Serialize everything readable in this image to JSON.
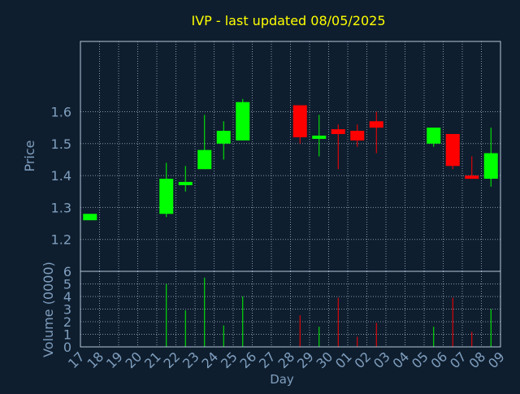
{
  "colors": {
    "background": "#0f1e2e",
    "plot_background": "#0f1e2e",
    "frame": "#b4c8dc",
    "grid": "#a0b4c8",
    "title": "#ffff00",
    "text": "#7f9fbf",
    "up": "#00ff00",
    "down": "#ff0000"
  },
  "chart_data": [
    {
      "type": "candlestick",
      "title": "IVP - last updated 08/05/2025",
      "ylabel": "Price",
      "ylim": [
        1.1,
        1.82
      ],
      "yticks": [
        "1.2",
        "1.3",
        "1.4",
        "1.5",
        "1.6"
      ],
      "grid": true,
      "categories": [
        "17",
        "18",
        "19",
        "20",
        "21",
        "22",
        "23",
        "24",
        "25",
        "26",
        "27",
        "28",
        "29",
        "30",
        "01",
        "02",
        "03",
        "04",
        "05",
        "06",
        "07",
        "08",
        "09"
      ],
      "candles": [
        {
          "day": "17",
          "open": 1.26,
          "high": 1.28,
          "low": 1.26,
          "close": 1.28
        },
        {
          "day": "21",
          "open": 1.28,
          "high": 1.44,
          "low": 1.27,
          "close": 1.39
        },
        {
          "day": "22",
          "open": 1.37,
          "high": 1.43,
          "low": 1.35,
          "close": 1.38
        },
        {
          "day": "23",
          "open": 1.42,
          "high": 1.59,
          "low": 1.42,
          "close": 1.48
        },
        {
          "day": "24",
          "open": 1.5,
          "high": 1.57,
          "low": 1.45,
          "close": 1.54
        },
        {
          "day": "25",
          "open": 1.51,
          "high": 1.64,
          "low": 1.51,
          "close": 1.63
        },
        {
          "day": "28",
          "open": 1.62,
          "high": 1.62,
          "low": 1.5,
          "close": 1.52
        },
        {
          "day": "29",
          "open": 1.52,
          "high": 1.59,
          "low": 1.46,
          "close": 1.525
        },
        {
          "day": "30",
          "open": 1.545,
          "high": 1.56,
          "low": 1.42,
          "close": 1.53
        },
        {
          "day": "01",
          "open": 1.54,
          "high": 1.56,
          "low": 1.49,
          "close": 1.51
        },
        {
          "day": "02",
          "open": 1.57,
          "high": 1.6,
          "low": 1.47,
          "close": 1.55
        },
        {
          "day": "05",
          "open": 1.5,
          "high": 1.55,
          "low": 1.49,
          "close": 1.55
        },
        {
          "day": "06",
          "open": 1.53,
          "high": 1.53,
          "low": 1.42,
          "close": 1.43
        },
        {
          "day": "07",
          "open": 1.4,
          "high": 1.46,
          "low": 1.39,
          "close": 1.39
        },
        {
          "day": "08",
          "open": 1.39,
          "high": 1.55,
          "low": 1.365,
          "close": 1.47
        }
      ]
    },
    {
      "type": "bar",
      "ylabel": "Volume (0000)",
      "xlabel": "Day",
      "ylim": [
        0,
        6
      ],
      "yticks": [
        "0",
        "1",
        "2",
        "3",
        "4",
        "5",
        "6"
      ],
      "grid": true,
      "categories": [
        "17",
        "18",
        "19",
        "20",
        "21",
        "22",
        "23",
        "24",
        "25",
        "26",
        "27",
        "28",
        "29",
        "30",
        "01",
        "02",
        "03",
        "04",
        "05",
        "06",
        "07",
        "08",
        "09"
      ],
      "volumes": [
        {
          "day": "21",
          "value": 5.0,
          "direction": "up"
        },
        {
          "day": "22",
          "value": 2.9,
          "direction": "up"
        },
        {
          "day": "23",
          "value": 5.5,
          "direction": "up"
        },
        {
          "day": "24",
          "value": 1.7,
          "direction": "up"
        },
        {
          "day": "25",
          "value": 4.0,
          "direction": "up"
        },
        {
          "day": "28",
          "value": 2.5,
          "direction": "down"
        },
        {
          "day": "29",
          "value": 1.6,
          "direction": "up"
        },
        {
          "day": "30",
          "value": 3.9,
          "direction": "down"
        },
        {
          "day": "01",
          "value": 0.8,
          "direction": "down"
        },
        {
          "day": "02",
          "value": 1.9,
          "direction": "down"
        },
        {
          "day": "05",
          "value": 1.6,
          "direction": "up"
        },
        {
          "day": "06",
          "value": 3.9,
          "direction": "down"
        },
        {
          "day": "07",
          "value": 1.2,
          "direction": "down"
        },
        {
          "day": "08",
          "value": 3.0,
          "direction": "up"
        }
      ]
    }
  ]
}
